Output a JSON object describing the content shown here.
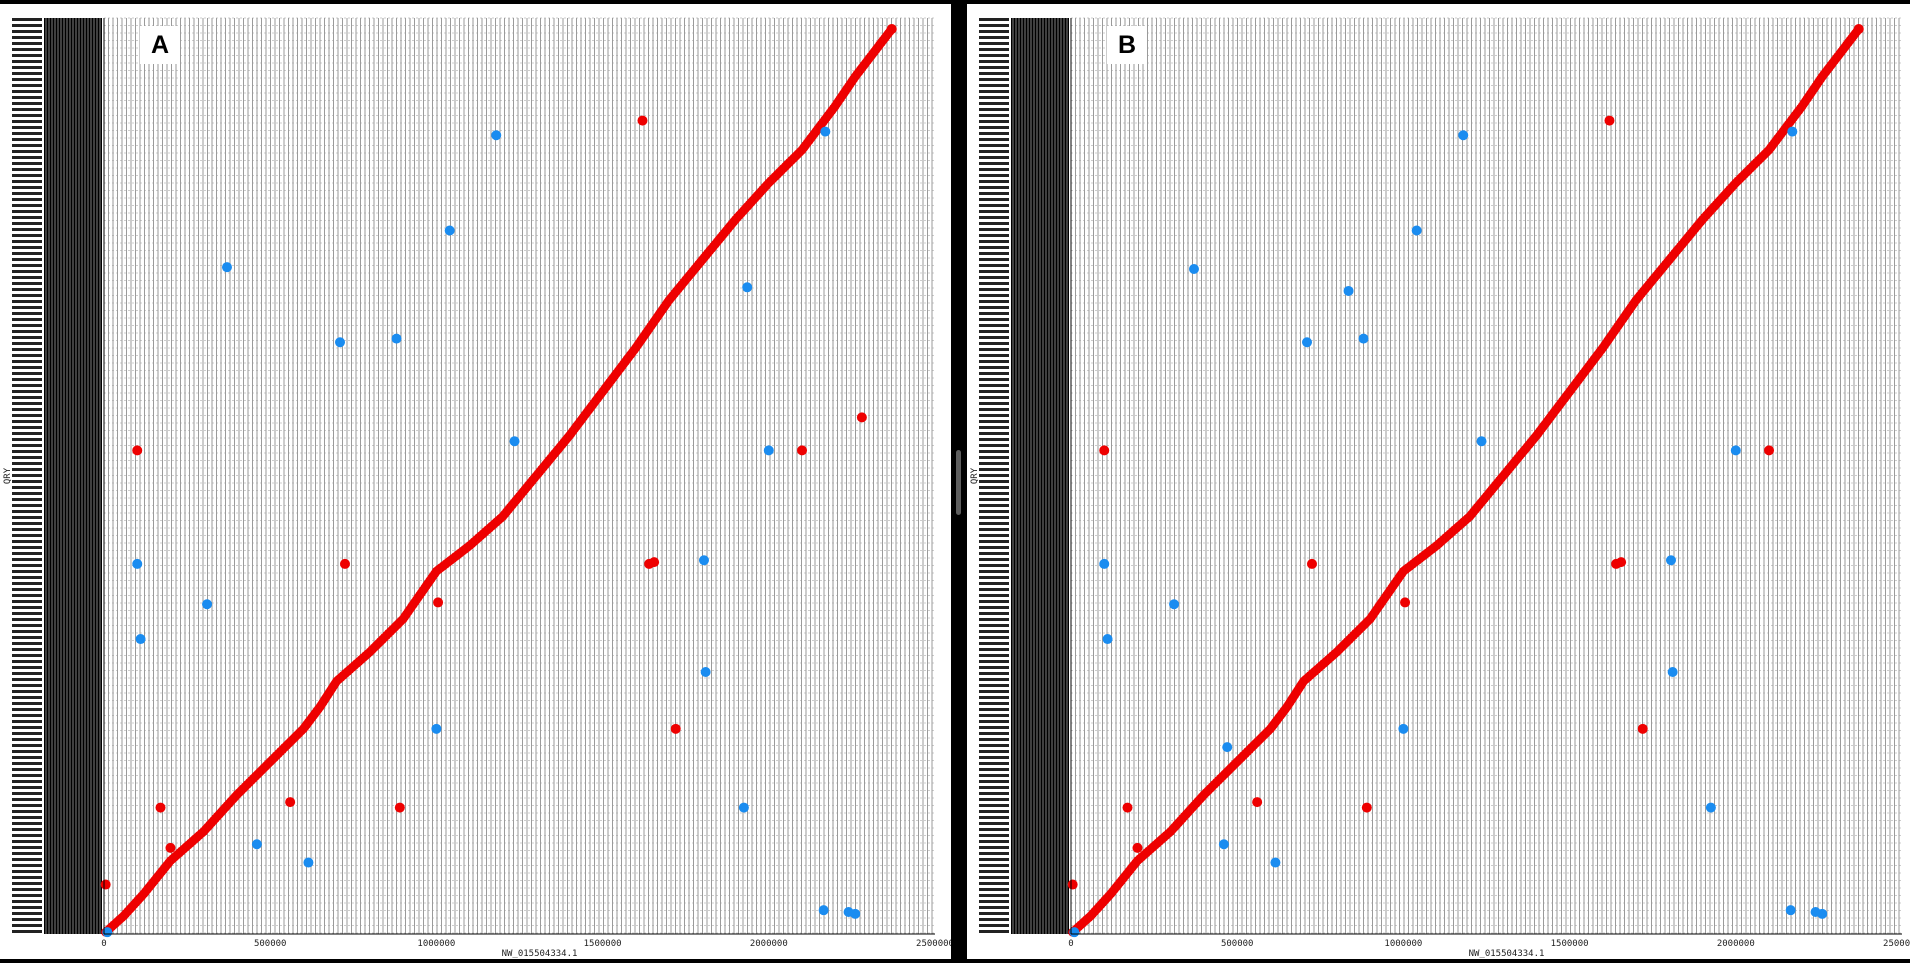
{
  "panels": [
    {
      "id": "A",
      "label": "A"
    },
    {
      "id": "B",
      "label": "B"
    }
  ],
  "colors": {
    "forward": "#ee0000",
    "reverse": "#1a8cf0",
    "grid": "#9a9a9a",
    "background": "#ffffff"
  },
  "chart_data": [
    {
      "type": "scatter",
      "panel": "A",
      "title": "",
      "xlabel": "NW_015504334.1",
      "ylabel": "QRY",
      "xlim": [
        0,
        2500000
      ],
      "ylim": [
        0,
        2500000
      ],
      "xticks": [
        "0",
        "500000",
        "1000000",
        "1500000",
        "2000000",
        "2500000"
      ],
      "grid": true,
      "diagonal": {
        "name": "forward",
        "color": "#ee0000",
        "points": [
          [
            5000,
            5000
          ],
          [
            60000,
            50000
          ],
          [
            120000,
            110000
          ],
          [
            200000,
            200000
          ],
          [
            300000,
            280000
          ],
          [
            400000,
            380000
          ],
          [
            500000,
            470000
          ],
          [
            600000,
            560000
          ],
          [
            650000,
            620000
          ],
          [
            700000,
            690000
          ],
          [
            800000,
            770000
          ],
          [
            900000,
            860000
          ],
          [
            1000000,
            990000
          ],
          [
            1100000,
            1060000
          ],
          [
            1200000,
            1140000
          ],
          [
            1300000,
            1250000
          ],
          [
            1400000,
            1360000
          ],
          [
            1500000,
            1480000
          ],
          [
            1600000,
            1600000
          ],
          [
            1700000,
            1730000
          ],
          [
            1800000,
            1840000
          ],
          [
            1900000,
            1950000
          ],
          [
            2000000,
            2050000
          ],
          [
            2100000,
            2140000
          ],
          [
            2200000,
            2260000
          ],
          [
            2260000,
            2340000
          ],
          [
            2370000,
            2470000
          ]
        ]
      },
      "offdiagonal": [
        {
          "x": 1620000,
          "y": 2220000,
          "s": "forward"
        },
        {
          "x": 2280000,
          "y": 1410000,
          "s": "forward"
        },
        {
          "x": 100000,
          "y": 1320000,
          "s": "forward"
        },
        {
          "x": 2100000,
          "y": 1320000,
          "s": "forward"
        },
        {
          "x": 725000,
          "y": 1010000,
          "s": "forward"
        },
        {
          "x": 1640000,
          "y": 1010000,
          "s": "forward"
        },
        {
          "x": 1655000,
          "y": 1015000,
          "s": "forward"
        },
        {
          "x": 1005000,
          "y": 905000,
          "s": "forward"
        },
        {
          "x": 1720000,
          "y": 560000,
          "s": "forward"
        },
        {
          "x": 170000,
          "y": 345000,
          "s": "forward"
        },
        {
          "x": 560000,
          "y": 360000,
          "s": "forward"
        },
        {
          "x": 890000,
          "y": 345000,
          "s": "forward"
        },
        {
          "x": 200000,
          "y": 235000,
          "s": "forward"
        },
        {
          "x": 5000,
          "y": 135000,
          "s": "forward"
        },
        {
          "x": 1180000,
          "y": 2180000,
          "s": "reverse"
        },
        {
          "x": 2170000,
          "y": 2190000,
          "s": "reverse"
        },
        {
          "x": 1040000,
          "y": 1920000,
          "s": "reverse"
        },
        {
          "x": 370000,
          "y": 1820000,
          "s": "reverse"
        },
        {
          "x": 1935000,
          "y": 1765000,
          "s": "reverse"
        },
        {
          "x": 710000,
          "y": 1615000,
          "s": "reverse"
        },
        {
          "x": 880000,
          "y": 1625000,
          "s": "reverse"
        },
        {
          "x": 1235000,
          "y": 1345000,
          "s": "reverse"
        },
        {
          "x": 2000000,
          "y": 1320000,
          "s": "reverse"
        },
        {
          "x": 100000,
          "y": 1010000,
          "s": "reverse"
        },
        {
          "x": 1805000,
          "y": 1020000,
          "s": "reverse"
        },
        {
          "x": 310000,
          "y": 900000,
          "s": "reverse"
        },
        {
          "x": 110000,
          "y": 805000,
          "s": "reverse"
        },
        {
          "x": 1810000,
          "y": 715000,
          "s": "reverse"
        },
        {
          "x": 1000000,
          "y": 560000,
          "s": "reverse"
        },
        {
          "x": 1925000,
          "y": 345000,
          "s": "reverse"
        },
        {
          "x": 460000,
          "y": 245000,
          "s": "reverse"
        },
        {
          "x": 615000,
          "y": 195000,
          "s": "reverse"
        },
        {
          "x": 2165000,
          "y": 65000,
          "s": "reverse"
        },
        {
          "x": 2240000,
          "y": 60000,
          "s": "reverse"
        },
        {
          "x": 2260000,
          "y": 55000,
          "s": "reverse"
        },
        {
          "x": 10000,
          "y": 5000,
          "s": "reverse"
        }
      ]
    },
    {
      "type": "scatter",
      "panel": "B",
      "title": "",
      "xlabel": "NW_015504334.1",
      "ylabel": "QRY",
      "xlim": [
        0,
        2500000
      ],
      "ylim": [
        0,
        2500000
      ],
      "xticks": [
        "0",
        "500000",
        "1000000",
        "1500000",
        "2000000",
        "2500000"
      ],
      "grid": true,
      "diagonal": {
        "name": "forward",
        "color": "#ee0000",
        "points": [
          [
            5000,
            5000
          ],
          [
            60000,
            50000
          ],
          [
            120000,
            110000
          ],
          [
            200000,
            200000
          ],
          [
            300000,
            280000
          ],
          [
            400000,
            380000
          ],
          [
            500000,
            470000
          ],
          [
            600000,
            560000
          ],
          [
            650000,
            620000
          ],
          [
            700000,
            690000
          ],
          [
            800000,
            770000
          ],
          [
            900000,
            860000
          ],
          [
            1000000,
            990000
          ],
          [
            1100000,
            1060000
          ],
          [
            1200000,
            1140000
          ],
          [
            1300000,
            1250000
          ],
          [
            1400000,
            1360000
          ],
          [
            1500000,
            1480000
          ],
          [
            1600000,
            1600000
          ],
          [
            1700000,
            1730000
          ],
          [
            1800000,
            1840000
          ],
          [
            1900000,
            1950000
          ],
          [
            2000000,
            2050000
          ],
          [
            2100000,
            2140000
          ],
          [
            2200000,
            2260000
          ],
          [
            2260000,
            2340000
          ],
          [
            2370000,
            2470000
          ]
        ]
      },
      "offdiagonal": [
        {
          "x": 1620000,
          "y": 2220000,
          "s": "forward"
        },
        {
          "x": 100000,
          "y": 1320000,
          "s": "forward"
        },
        {
          "x": 2100000,
          "y": 1320000,
          "s": "forward"
        },
        {
          "x": 725000,
          "y": 1010000,
          "s": "forward"
        },
        {
          "x": 1640000,
          "y": 1010000,
          "s": "forward"
        },
        {
          "x": 1655000,
          "y": 1015000,
          "s": "forward"
        },
        {
          "x": 1005000,
          "y": 905000,
          "s": "forward"
        },
        {
          "x": 1720000,
          "y": 560000,
          "s": "forward"
        },
        {
          "x": 170000,
          "y": 345000,
          "s": "forward"
        },
        {
          "x": 560000,
          "y": 360000,
          "s": "forward"
        },
        {
          "x": 890000,
          "y": 345000,
          "s": "forward"
        },
        {
          "x": 200000,
          "y": 235000,
          "s": "forward"
        },
        {
          "x": 5000,
          "y": 135000,
          "s": "forward"
        },
        {
          "x": 1180000,
          "y": 2180000,
          "s": "reverse"
        },
        {
          "x": 2170000,
          "y": 2190000,
          "s": "reverse"
        },
        {
          "x": 1040000,
          "y": 1920000,
          "s": "reverse"
        },
        {
          "x": 370000,
          "y": 1815000,
          "s": "reverse"
        },
        {
          "x": 835000,
          "y": 1755000,
          "s": "reverse"
        },
        {
          "x": 710000,
          "y": 1615000,
          "s": "reverse"
        },
        {
          "x": 880000,
          "y": 1625000,
          "s": "reverse"
        },
        {
          "x": 1235000,
          "y": 1345000,
          "s": "reverse"
        },
        {
          "x": 2000000,
          "y": 1320000,
          "s": "reverse"
        },
        {
          "x": 100000,
          "y": 1010000,
          "s": "reverse"
        },
        {
          "x": 1805000,
          "y": 1020000,
          "s": "reverse"
        },
        {
          "x": 310000,
          "y": 900000,
          "s": "reverse"
        },
        {
          "x": 110000,
          "y": 805000,
          "s": "reverse"
        },
        {
          "x": 1810000,
          "y": 715000,
          "s": "reverse"
        },
        {
          "x": 470000,
          "y": 510000,
          "s": "reverse"
        },
        {
          "x": 1000000,
          "y": 560000,
          "s": "reverse"
        },
        {
          "x": 1925000,
          "y": 345000,
          "s": "reverse"
        },
        {
          "x": 460000,
          "y": 245000,
          "s": "reverse"
        },
        {
          "x": 615000,
          "y": 195000,
          "s": "reverse"
        },
        {
          "x": 2165000,
          "y": 65000,
          "s": "reverse"
        },
        {
          "x": 2240000,
          "y": 60000,
          "s": "reverse"
        },
        {
          "x": 2260000,
          "y": 55000,
          "s": "reverse"
        },
        {
          "x": 10000,
          "y": 5000,
          "s": "reverse"
        }
      ]
    }
  ]
}
